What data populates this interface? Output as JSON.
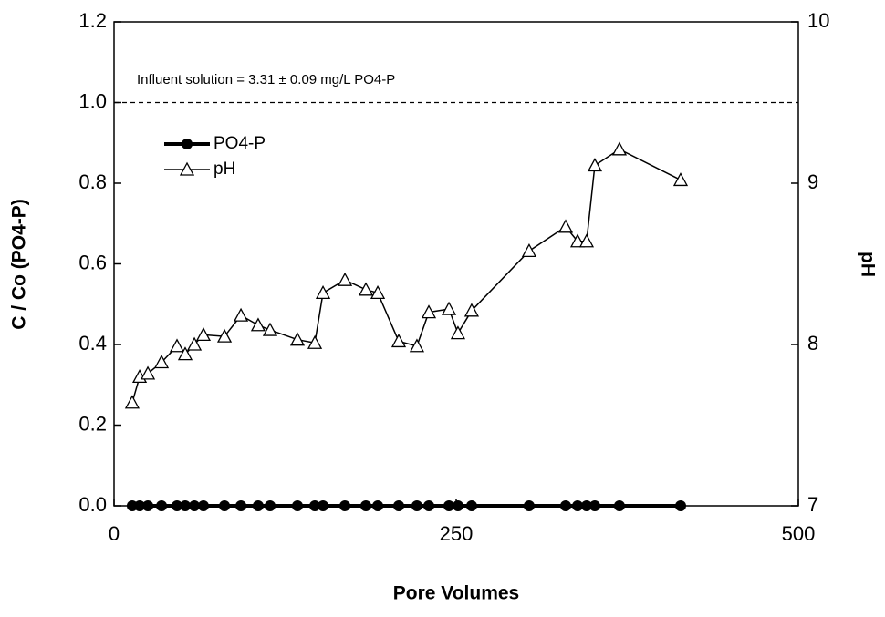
{
  "chart_data": {
    "type": "line",
    "annotation": "Influent solution = 3.31 ± 0.09 mg/L PO4-P",
    "reference_line": 1,
    "xlabel": "Pore Volumes",
    "ylabel": "C / Co (PO4-P)",
    "y2label": "pH",
    "x": [
      13.3,
      18.7,
      24.7,
      34.7,
      46,
      52,
      58.7,
      65.3,
      80.7,
      92.7,
      105.3,
      114,
      134,
      146.7,
      152.7,
      168.7,
      184,
      192.7,
      208,
      221.3,
      230,
      244.7,
      251.3,
      261.3,
      303.3,
      330,
      338.7,
      345.3,
      351.3,
      369.3,
      414
    ],
    "series": [
      {
        "name": "PO4-P",
        "color": "#000000",
        "marker": "circle",
        "values": [
          0,
          0,
          0,
          0,
          0,
          0,
          0,
          0,
          0,
          0,
          0,
          0,
          0,
          0,
          0,
          0,
          0,
          0,
          0,
          0,
          0,
          0,
          0,
          0,
          0,
          0,
          0,
          0,
          0,
          0,
          0
        ]
      },
      {
        "name": "pH",
        "color": "#000000",
        "marker": "triangle",
        "axis": "y2",
        "values": [
          7.64,
          7.8,
          7.82,
          7.89,
          7.99,
          7.94,
          8.0,
          8.06,
          8.05,
          8.18,
          8.12,
          8.09,
          8.03,
          8.01,
          8.32,
          8.4,
          8.34,
          8.32,
          8.02,
          7.99,
          8.2,
          8.22,
          8.07,
          8.21,
          8.58,
          8.73,
          8.64,
          8.64,
          9.11,
          9.21,
          9.02
        ]
      }
    ],
    "xlim": [
      0,
      500
    ],
    "xticks": [
      0,
      250,
      500
    ],
    "ylim": [
      0,
      1.2
    ],
    "yticks": [
      {
        "value": 0,
        "label": "0.0"
      },
      0.2,
      0.4,
      0.6,
      0.8,
      {
        "value": 1,
        "label": "1.0"
      },
      1.2
    ],
    "y2lim": [
      7,
      10
    ],
    "y2ticks": [
      7,
      8,
      9,
      10
    ],
    "legend": "upper left"
  }
}
